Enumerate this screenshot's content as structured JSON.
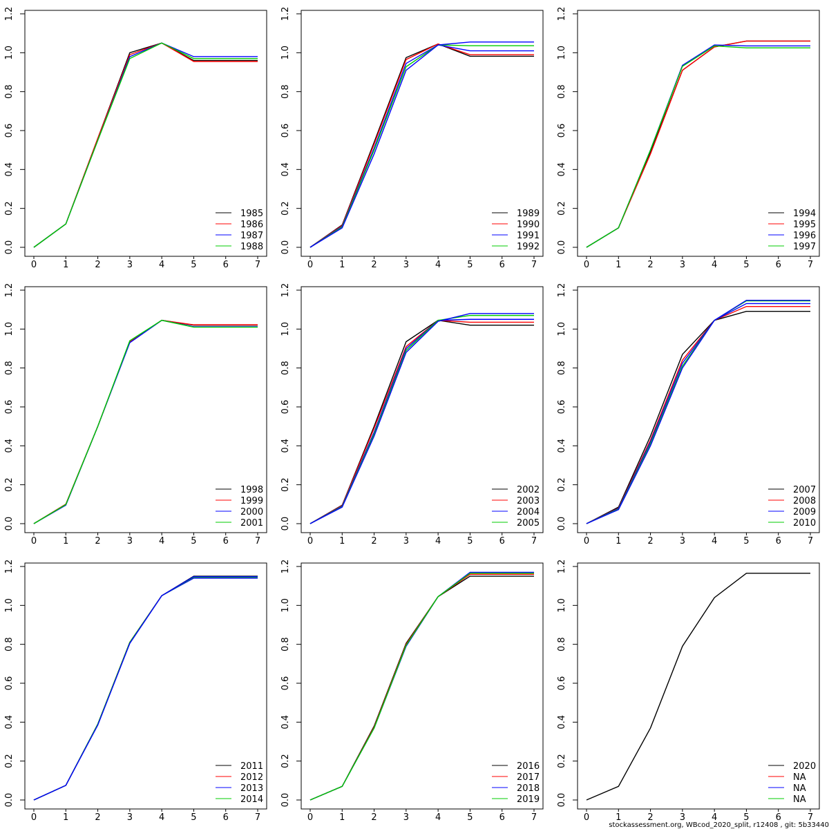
{
  "footer": "stockassessment.org, WBcod_2020_split, r12408 , git: 5b33440",
  "chart_data": [
    {
      "type": "line",
      "x": [
        0,
        1,
        2,
        3,
        4,
        5,
        6,
        7
      ],
      "xlim": [
        0,
        7
      ],
      "ylim": [
        0,
        1.2
      ],
      "grid": false,
      "x_ticks": [
        "0",
        "1",
        "2",
        "3",
        "4",
        "5",
        "6",
        "7"
      ],
      "y_ticks": [
        "0.0",
        "0.2",
        "0.4",
        "0.6",
        "0.8",
        "1.0",
        "1.2"
      ],
      "legend_position": "bottom-right",
      "legend": [
        {
          "label": "1985",
          "color": "#000000"
        },
        {
          "label": "1986",
          "color": "#ff0000"
        },
        {
          "label": "1987",
          "color": "#0000ff"
        },
        {
          "label": "1988",
          "color": "#00cd00"
        }
      ],
      "series": [
        {
          "name": "1985",
          "color": "#000000",
          "values": [
            0,
            0.12,
            0.56,
            1.0,
            1.05,
            0.96,
            0.96,
            0.96
          ]
        },
        {
          "name": "1986",
          "color": "#ff0000",
          "values": [
            0,
            0.12,
            0.56,
            0.99,
            1.05,
            0.955,
            0.955,
            0.955
          ]
        },
        {
          "name": "1987",
          "color": "#0000ff",
          "values": [
            0,
            0.12,
            0.55,
            0.98,
            1.05,
            0.98,
            0.98,
            0.98
          ]
        },
        {
          "name": "1988",
          "color": "#00cd00",
          "values": [
            0,
            0.12,
            0.55,
            0.97,
            1.05,
            0.97,
            0.97,
            0.97
          ]
        }
      ]
    },
    {
      "type": "line",
      "x": [
        0,
        1,
        2,
        3,
        4,
        5,
        6,
        7
      ],
      "xlim": [
        0,
        7
      ],
      "ylim": [
        0,
        1.2
      ],
      "grid": false,
      "x_ticks": [
        "0",
        "1",
        "2",
        "3",
        "4",
        "5",
        "6",
        "7"
      ],
      "y_ticks": [
        "0.0",
        "0.2",
        "0.4",
        "0.6",
        "0.8",
        "1.0",
        "1.2"
      ],
      "legend_position": "bottom-right",
      "legend": [
        {
          "label": "1989",
          "color": "#000000"
        },
        {
          "label": "1990",
          "color": "#ff0000"
        },
        {
          "label": "1991",
          "color": "#0000ff"
        },
        {
          "label": "1992",
          "color": "#00cd00"
        }
      ],
      "series": [
        {
          "name": "1989",
          "color": "#000000",
          "values": [
            0,
            0.115,
            0.54,
            0.975,
            1.045,
            0.982,
            0.982,
            0.982
          ]
        },
        {
          "name": "1990",
          "color": "#ff0000",
          "values": [
            0,
            0.112,
            0.53,
            0.965,
            1.045,
            0.99,
            0.99,
            0.99
          ]
        },
        {
          "name": "1991",
          "color": "#0000ff",
          "values": [
            0,
            0.108,
            0.51,
            0.945,
            1.04,
            1.01,
            1.01,
            1.01
          ]
        },
        {
          "name": "1992",
          "color": "#00cd00",
          "values": [
            0,
            0.105,
            0.5,
            0.928,
            1.04,
            1.036,
            1.036,
            1.036
          ]
        },
        {
          "color": "#0000ff",
          "values": [
            0,
            0.1,
            0.48,
            0.91,
            1.04,
            1.055,
            1.055,
            1.055
          ]
        }
      ]
    },
    {
      "type": "line",
      "x": [
        0,
        1,
        2,
        3,
        4,
        5,
        6,
        7
      ],
      "xlim": [
        0,
        7
      ],
      "ylim": [
        0,
        1.2
      ],
      "grid": false,
      "x_ticks": [
        "0",
        "1",
        "2",
        "3",
        "4",
        "5",
        "6",
        "7"
      ],
      "y_ticks": [
        "0.0",
        "0.2",
        "0.4",
        "0.6",
        "0.8",
        "1.0",
        "1.2"
      ],
      "legend_position": "bottom-right",
      "legend": [
        {
          "label": "1994",
          "color": "#000000"
        },
        {
          "label": "1995",
          "color": "#ff0000"
        },
        {
          "label": "1996",
          "color": "#0000ff"
        },
        {
          "label": "1997",
          "color": "#00cd00"
        }
      ],
      "series": [
        {
          "name": "1994",
          "color": "#000000",
          "values": [
            0,
            0.1,
            0.49,
            0.91,
            1.03,
            1.06,
            1.06,
            1.06
          ]
        },
        {
          "name": "1995",
          "color": "#ff0000",
          "values": [
            0,
            0.1,
            0.48,
            0.91,
            1.03,
            1.06,
            1.06,
            1.06
          ]
        },
        {
          "name": "1996",
          "color": "#0000ff",
          "values": [
            0,
            0.1,
            0.5,
            0.935,
            1.04,
            1.035,
            1.035,
            1.035
          ]
        },
        {
          "name": "1997",
          "color": "#00cd00",
          "values": [
            0,
            0.1,
            0.5,
            0.93,
            1.035,
            1.025,
            1.025,
            1.025
          ]
        }
      ]
    },
    {
      "type": "line",
      "x": [
        0,
        1,
        2,
        3,
        4,
        5,
        6,
        7
      ],
      "xlim": [
        0,
        7
      ],
      "ylim": [
        0,
        1.2
      ],
      "grid": false,
      "x_ticks": [
        "0",
        "1",
        "2",
        "3",
        "4",
        "5",
        "6",
        "7"
      ],
      "y_ticks": [
        "0.0",
        "0.2",
        "0.4",
        "0.6",
        "0.8",
        "1.0",
        "1.2"
      ],
      "legend_position": "bottom-right",
      "legend": [
        {
          "label": "1998",
          "color": "#000000"
        },
        {
          "label": "1999",
          "color": "#ff0000"
        },
        {
          "label": "2000",
          "color": "#0000ff"
        },
        {
          "label": "2001",
          "color": "#00cd00"
        }
      ],
      "series": [
        {
          "name": "1998",
          "color": "#000000",
          "values": [
            0,
            0.1,
            0.5,
            0.935,
            1.045,
            1.02,
            1.02,
            1.02
          ]
        },
        {
          "name": "1999",
          "color": "#ff0000",
          "values": [
            0,
            0.1,
            0.5,
            0.935,
            1.045,
            1.022,
            1.022,
            1.022
          ]
        },
        {
          "name": "2000",
          "color": "#0000ff",
          "values": [
            0,
            0.095,
            0.5,
            0.93,
            1.045,
            1.012,
            1.012,
            1.012
          ]
        },
        {
          "name": "2001",
          "color": "#00cd00",
          "values": [
            0,
            0.098,
            0.5,
            0.94,
            1.045,
            1.01,
            1.01,
            1.01
          ]
        }
      ]
    },
    {
      "type": "line",
      "x": [
        0,
        1,
        2,
        3,
        4,
        5,
        6,
        7
      ],
      "xlim": [
        0,
        7
      ],
      "ylim": [
        0,
        1.2
      ],
      "grid": false,
      "x_ticks": [
        "0",
        "1",
        "2",
        "3",
        "4",
        "5",
        "6",
        "7"
      ],
      "y_ticks": [
        "0.0",
        "0.2",
        "0.4",
        "0.6",
        "0.8",
        "1.0",
        "1.2"
      ],
      "legend_position": "bottom-right",
      "legend": [
        {
          "label": "2002",
          "color": "#000000"
        },
        {
          "label": "2003",
          "color": "#ff0000"
        },
        {
          "label": "2004",
          "color": "#0000ff"
        },
        {
          "label": "2005",
          "color": "#00cd00"
        }
      ],
      "series": [
        {
          "name": "2002",
          "color": "#000000",
          "values": [
            0,
            0.095,
            0.5,
            0.935,
            1.045,
            1.02,
            1.02,
            1.02
          ]
        },
        {
          "name": "2003",
          "color": "#ff0000",
          "values": [
            0,
            0.093,
            0.49,
            0.91,
            1.045,
            1.035,
            1.035,
            1.035
          ]
        },
        {
          "name": "2004",
          "color": "#0000ff",
          "values": [
            0,
            0.09,
            0.47,
            0.9,
            1.045,
            1.05,
            1.05,
            1.05
          ]
        },
        {
          "name": "2005",
          "color": "#00cd00",
          "values": [
            0,
            0.088,
            0.46,
            0.89,
            1.045,
            1.07,
            1.07,
            1.07
          ]
        },
        {
          "color": "#0000ff",
          "values": [
            0,
            0.085,
            0.45,
            0.88,
            1.04,
            1.08,
            1.08,
            1.08
          ]
        }
      ]
    },
    {
      "type": "line",
      "x": [
        0,
        1,
        2,
        3,
        4,
        5,
        6,
        7
      ],
      "xlim": [
        0,
        7
      ],
      "ylim": [
        0,
        1.2
      ],
      "grid": false,
      "x_ticks": [
        "0",
        "1",
        "2",
        "3",
        "4",
        "5",
        "6",
        "7"
      ],
      "y_ticks": [
        "0.0",
        "0.2",
        "0.4",
        "0.6",
        "0.8",
        "1.0",
        "1.2"
      ],
      "legend_position": "bottom-right",
      "legend": [
        {
          "label": "2007",
          "color": "#000000"
        },
        {
          "label": "2008",
          "color": "#ff0000"
        },
        {
          "label": "2009",
          "color": "#0000ff"
        },
        {
          "label": "2010",
          "color": "#00cd00"
        }
      ],
      "series": [
        {
          "name": "2007",
          "color": "#000000",
          "values": [
            0,
            0.085,
            0.45,
            0.87,
            1.045,
            1.091,
            1.091,
            1.091
          ]
        },
        {
          "name": "2008",
          "color": "#ff0000",
          "values": [
            0,
            0.08,
            0.43,
            0.84,
            1.045,
            1.116,
            1.116,
            1.116
          ]
        },
        {
          "name": "2009",
          "color": "#0000ff",
          "values": [
            0,
            0.078,
            0.42,
            0.825,
            1.045,
            1.131,
            1.131,
            1.131
          ]
        },
        {
          "name": "2010",
          "color": "#00cd00",
          "values": [
            0,
            0.075,
            0.41,
            0.81,
            1.045,
            1.145,
            1.145,
            1.145
          ]
        },
        {
          "color": "#0000ff",
          "values": [
            0,
            0.072,
            0.4,
            0.8,
            1.045,
            1.148,
            1.148,
            1.148
          ]
        }
      ]
    },
    {
      "type": "line",
      "x": [
        0,
        1,
        2,
        3,
        4,
        5,
        6,
        7
      ],
      "xlim": [
        0,
        7
      ],
      "ylim": [
        0,
        1.2
      ],
      "grid": false,
      "x_ticks": [
        "0",
        "1",
        "2",
        "3",
        "4",
        "5",
        "6",
        "7"
      ],
      "y_ticks": [
        "0.0",
        "0.2",
        "0.4",
        "0.6",
        "0.8",
        "1.0",
        "1.2"
      ],
      "legend_position": "bottom-right",
      "legend": [
        {
          "label": "2011",
          "color": "#000000"
        },
        {
          "label": "2012",
          "color": "#ff0000"
        },
        {
          "label": "2013",
          "color": "#0000ff"
        },
        {
          "label": "2014",
          "color": "#00cd00"
        }
      ],
      "series": [
        {
          "name": "2011",
          "color": "#000000",
          "values": [
            0,
            0.075,
            0.39,
            0.81,
            1.05,
            1.15,
            1.15,
            1.15
          ]
        },
        {
          "name": "2012",
          "color": "#ff0000",
          "values": [
            0,
            0.075,
            0.39,
            0.81,
            1.05,
            1.145,
            1.145,
            1.145
          ]
        },
        {
          "name": "2013",
          "color": "#0000ff",
          "values": [
            0,
            0.075,
            0.39,
            0.805,
            1.05,
            1.14,
            1.14,
            1.14
          ]
        },
        {
          "name": "2014",
          "color": "#00cd00",
          "values": [
            0,
            0.075,
            0.39,
            0.81,
            1.05,
            1.145,
            1.145,
            1.145
          ]
        },
        {
          "color": "#0000ff",
          "values": [
            0,
            0.075,
            0.385,
            0.805,
            1.05,
            1.148,
            1.148,
            1.148
          ]
        }
      ]
    },
    {
      "type": "line",
      "x": [
        0,
        1,
        2,
        3,
        4,
        5,
        6,
        7
      ],
      "xlim": [
        0,
        7
      ],
      "ylim": [
        0,
        1.2
      ],
      "grid": false,
      "x_ticks": [
        "0",
        "1",
        "2",
        "3",
        "4",
        "5",
        "6",
        "7"
      ],
      "y_ticks": [
        "0.0",
        "0.2",
        "0.4",
        "0.6",
        "0.8",
        "1.0",
        "1.2"
      ],
      "legend_position": "bottom-right",
      "legend": [
        {
          "label": "2016",
          "color": "#000000"
        },
        {
          "label": "2017",
          "color": "#ff0000"
        },
        {
          "label": "2018",
          "color": "#0000ff"
        },
        {
          "label": "2019",
          "color": "#00cd00"
        }
      ],
      "series": [
        {
          "name": "2016",
          "color": "#000000",
          "values": [
            0,
            0.07,
            0.38,
            0.805,
            1.045,
            1.15,
            1.15,
            1.15
          ]
        },
        {
          "name": "2017",
          "color": "#ff0000",
          "values": [
            0,
            0.07,
            0.375,
            0.8,
            1.045,
            1.16,
            1.16,
            1.16
          ]
        },
        {
          "name": "2018",
          "color": "#0000ff",
          "values": [
            0,
            0.07,
            0.37,
            0.79,
            1.045,
            1.17,
            1.17,
            1.17
          ]
        },
        {
          "name": "2019",
          "color": "#00cd00",
          "values": [
            0,
            0.07,
            0.37,
            0.795,
            1.045,
            1.165,
            1.165,
            1.165
          ]
        }
      ]
    },
    {
      "type": "line",
      "x": [
        0,
        1,
        2,
        3,
        4,
        5,
        6,
        7
      ],
      "xlim": [
        0,
        7
      ],
      "ylim": [
        0,
        1.2
      ],
      "grid": false,
      "x_ticks": [
        "0",
        "1",
        "2",
        "3",
        "4",
        "5",
        "6",
        "7"
      ],
      "y_ticks": [
        "0.0",
        "0.2",
        "0.4",
        "0.6",
        "0.8",
        "1.0",
        "1.2"
      ],
      "legend_position": "bottom-right",
      "legend": [
        {
          "label": "2020",
          "color": "#000000"
        },
        {
          "label": "NA",
          "color": "#ff0000"
        },
        {
          "label": "NA",
          "color": "#0000ff"
        },
        {
          "label": "NA",
          "color": "#00cd00"
        }
      ],
      "series": [
        {
          "name": "2020",
          "color": "#000000",
          "values": [
            0,
            0.07,
            0.37,
            0.79,
            1.04,
            1.165,
            1.165,
            1.165
          ]
        }
      ]
    }
  ]
}
